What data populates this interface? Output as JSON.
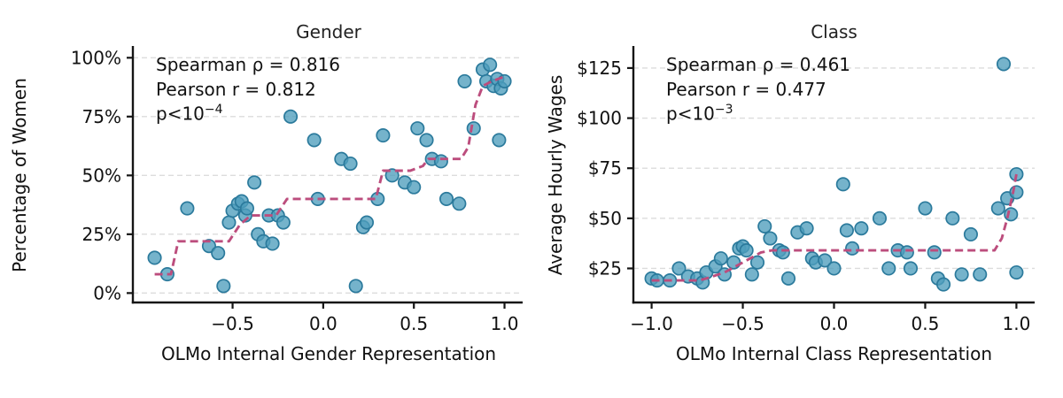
{
  "figure": {
    "background": "#ffffff",
    "colors": {
      "scatter_fill": "#4e9dbd",
      "scatter_edge": "#2b7a9c",
      "trend_line": "#bc4d7d",
      "grid": "#dcdcdc",
      "axis": "#151515",
      "text": "#111111"
    }
  },
  "chart_data": [
    {
      "type": "scatter",
      "title": "Gender",
      "xlabel": "OLMo Internal Gender Representation",
      "ylabel": "Percentage of Women",
      "legend": null,
      "grid": "y-only dashed",
      "xlim": [
        -1.05,
        1.1
      ],
      "ylim": [
        -4,
        105
      ],
      "x_ticks": [
        {
          "v": -0.5,
          "label": "−0.5"
        },
        {
          "v": 0.0,
          "label": "0.0"
        },
        {
          "v": 0.5,
          "label": "0.5"
        },
        {
          "v": 1.0,
          "label": "1.0"
        }
      ],
      "y_ticks": [
        {
          "v": 0,
          "label": "0%"
        },
        {
          "v": 25,
          "label": "25%"
        },
        {
          "v": 50,
          "label": "50%"
        },
        {
          "v": 75,
          "label": "75%"
        },
        {
          "v": 100,
          "label": "100%"
        }
      ],
      "annotation": {
        "line1": "Spearman ρ = 0.816",
        "line2": "Pearson r = 0.812",
        "p_base": "p<10",
        "p_exp": "−4"
      },
      "points": [
        [
          -0.93,
          15
        ],
        [
          -0.86,
          8
        ],
        [
          -0.75,
          36
        ],
        [
          -0.63,
          20
        ],
        [
          -0.58,
          17
        ],
        [
          -0.55,
          3
        ],
        [
          -0.52,
          30
        ],
        [
          -0.5,
          35
        ],
        [
          -0.47,
          38
        ],
        [
          -0.45,
          39
        ],
        [
          -0.43,
          33
        ],
        [
          -0.42,
          36
        ],
        [
          -0.38,
          47
        ],
        [
          -0.36,
          25
        ],
        [
          -0.33,
          22
        ],
        [
          -0.3,
          33
        ],
        [
          -0.28,
          21
        ],
        [
          -0.25,
          33
        ],
        [
          -0.22,
          30
        ],
        [
          -0.18,
          75
        ],
        [
          -0.05,
          65
        ],
        [
          -0.03,
          40
        ],
        [
          0.1,
          57
        ],
        [
          0.15,
          55
        ],
        [
          0.18,
          3
        ],
        [
          0.22,
          28
        ],
        [
          0.24,
          30
        ],
        [
          0.3,
          40
        ],
        [
          0.33,
          67
        ],
        [
          0.38,
          50
        ],
        [
          0.45,
          47
        ],
        [
          0.5,
          45
        ],
        [
          0.52,
          70
        ],
        [
          0.57,
          65
        ],
        [
          0.6,
          57
        ],
        [
          0.65,
          56
        ],
        [
          0.68,
          40
        ],
        [
          0.75,
          38
        ],
        [
          0.78,
          90
        ],
        [
          0.83,
          70
        ],
        [
          0.88,
          95
        ],
        [
          0.9,
          90
        ],
        [
          0.92,
          97
        ],
        [
          0.94,
          88
        ],
        [
          0.96,
          91
        ],
        [
          0.97,
          65
        ],
        [
          0.98,
          87
        ],
        [
          1.0,
          90
        ]
      ],
      "trend": [
        [
          -0.93,
          8
        ],
        [
          -0.84,
          8
        ],
        [
          -0.8,
          22
        ],
        [
          -0.52,
          22
        ],
        [
          -0.46,
          29
        ],
        [
          -0.4,
          33
        ],
        [
          -0.26,
          33
        ],
        [
          -0.2,
          40
        ],
        [
          0.29,
          40
        ],
        [
          0.33,
          52
        ],
        [
          0.48,
          52
        ],
        [
          0.55,
          54
        ],
        [
          0.58,
          57
        ],
        [
          0.76,
          57
        ],
        [
          0.8,
          62
        ],
        [
          0.84,
          80
        ],
        [
          0.88,
          88
        ],
        [
          0.93,
          90
        ],
        [
          1.0,
          92
        ]
      ],
      "margins": {
        "l": 150,
        "r": 10,
        "t": 52,
        "b": 108
      }
    },
    {
      "type": "scatter",
      "title": "Class",
      "xlabel": "OLMo Internal Class Representation",
      "ylabel": "Average Hourly Wages",
      "legend": null,
      "grid": "y-only dashed",
      "xlim": [
        -1.1,
        1.1
      ],
      "ylim": [
        8,
        136
      ],
      "x_ticks": [
        {
          "v": -1.0,
          "label": "−1.0"
        },
        {
          "v": -0.5,
          "label": "−0.5"
        },
        {
          "v": 0.0,
          "label": "0.0"
        },
        {
          "v": 0.5,
          "label": "0.5"
        },
        {
          "v": 1.0,
          "label": "1.0"
        }
      ],
      "y_ticks": [
        {
          "v": 25,
          "label": "$25"
        },
        {
          "v": 50,
          "label": "$50"
        },
        {
          "v": 75,
          "label": "$75"
        },
        {
          "v": 100,
          "label": "$100"
        },
        {
          "v": 125,
          "label": "$125"
        }
      ],
      "annotation": {
        "line1": "Spearman ρ = 0.461",
        "line2": "Pearson r = 0.477",
        "p_base": "p<10",
        "p_exp": "−3"
      },
      "points": [
        [
          -1.0,
          20
        ],
        [
          -0.97,
          19
        ],
        [
          -0.9,
          19
        ],
        [
          -0.85,
          25
        ],
        [
          -0.8,
          21
        ],
        [
          -0.75,
          20
        ],
        [
          -0.72,
          18
        ],
        [
          -0.7,
          23
        ],
        [
          -0.65,
          26
        ],
        [
          -0.62,
          30
        ],
        [
          -0.6,
          22
        ],
        [
          -0.55,
          28
        ],
        [
          -0.52,
          35
        ],
        [
          -0.5,
          36
        ],
        [
          -0.48,
          34
        ],
        [
          -0.45,
          22
        ],
        [
          -0.42,
          28
        ],
        [
          -0.38,
          46
        ],
        [
          -0.35,
          40
        ],
        [
          -0.3,
          34
        ],
        [
          -0.28,
          33
        ],
        [
          -0.25,
          20
        ],
        [
          -0.2,
          43
        ],
        [
          -0.15,
          45
        ],
        [
          -0.12,
          30
        ],
        [
          -0.1,
          28
        ],
        [
          -0.05,
          29
        ],
        [
          0.0,
          25
        ],
        [
          0.05,
          67
        ],
        [
          0.07,
          44
        ],
        [
          0.1,
          35
        ],
        [
          0.15,
          45
        ],
        [
          0.25,
          50
        ],
        [
          0.3,
          25
        ],
        [
          0.35,
          34
        ],
        [
          0.4,
          33
        ],
        [
          0.42,
          25
        ],
        [
          0.5,
          55
        ],
        [
          0.55,
          33
        ],
        [
          0.57,
          20
        ],
        [
          0.6,
          17
        ],
        [
          0.65,
          50
        ],
        [
          0.7,
          22
        ],
        [
          0.75,
          42
        ],
        [
          0.8,
          22
        ],
        [
          0.9,
          55
        ],
        [
          0.93,
          127
        ],
        [
          0.95,
          60
        ],
        [
          0.97,
          52
        ],
        [
          1.0,
          72
        ],
        [
          1.0,
          63
        ],
        [
          1.0,
          23
        ]
      ],
      "trend": [
        [
          -1.0,
          19
        ],
        [
          -0.74,
          19
        ],
        [
          -0.7,
          20
        ],
        [
          -0.6,
          23
        ],
        [
          -0.52,
          27
        ],
        [
          -0.46,
          30
        ],
        [
          -0.4,
          33
        ],
        [
          -0.34,
          34
        ],
        [
          0.88,
          34
        ],
        [
          0.92,
          40
        ],
        [
          0.95,
          50
        ],
        [
          0.98,
          62
        ],
        [
          1.0,
          72
        ]
      ],
      "margins": {
        "l": 115,
        "r": 32,
        "t": 52,
        "b": 108
      }
    }
  ]
}
